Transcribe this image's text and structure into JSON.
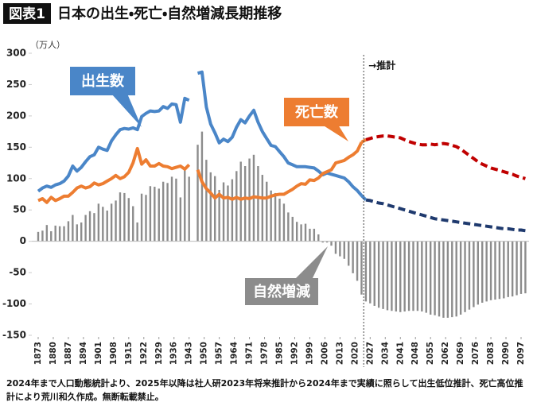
{
  "chart_data": {
    "type": "bar_line",
    "figure_label": "図表1",
    "title": "日本の出生・死亡・自然増減長期推移",
    "y_unit": "（万人）",
    "forecast_label": "→推計",
    "note": "2024年まで人口動態統計より、2025年以降は社人研2023年将来推計から2024年まで実績に照らして出生低位推計、死亡高位推計により荒川和久作成。無断転載禁止。",
    "forecast_from": 2025,
    "x": [
      1873,
      1875,
      1877,
      1879,
      1881,
      1883,
      1885,
      1887,
      1889,
      1891,
      1893,
      1895,
      1897,
      1899,
      1901,
      1903,
      1905,
      1907,
      1909,
      1911,
      1913,
      1915,
      1917,
      1919,
      1921,
      1923,
      1925,
      1927,
      1929,
      1931,
      1933,
      1935,
      1937,
      1939,
      1941,
      1943,
      1945,
      1947,
      1949,
      1951,
      1953,
      1955,
      1957,
      1959,
      1961,
      1963,
      1965,
      1967,
      1969,
      1971,
      1973,
      1975,
      1977,
      1979,
      1981,
      1983,
      1985,
      1987,
      1989,
      1991,
      1993,
      1995,
      1997,
      1999,
      2001,
      2003,
      2005,
      2007,
      2009,
      2011,
      2013,
      2015,
      2017,
      2019,
      2021,
      2023,
      2025,
      2027,
      2029,
      2031,
      2033,
      2035,
      2037,
      2039,
      2041,
      2043,
      2045,
      2047,
      2049,
      2051,
      2053,
      2055,
      2057,
      2059,
      2061,
      2063,
      2065,
      2067,
      2069,
      2071,
      2073,
      2075,
      2077,
      2079,
      2081,
      2083,
      2085,
      2087,
      2089,
      2091,
      2093,
      2095,
      2097,
      2099
    ],
    "series": [
      {
        "name": "自然増減",
        "type": "bar",
        "color": "#8c8c8c",
        "values": [
          15,
          17,
          26,
          16,
          25,
          24,
          24,
          32,
          42,
          27,
          30,
          42,
          48,
          45,
          60,
          55,
          49,
          60,
          65,
          78,
          77,
          69,
          56,
          30,
          76,
          74,
          88,
          87,
          84,
          95,
          93,
          103,
          100,
          70,
          113,
          103,
          null,
          154,
          175,
          130,
          110,
          104,
          82,
          94,
          89,
          99,
          112,
          127,
          120,
          132,
          138,
          120,
          106,
          95,
          81,
          77,
          68,
          60,
          46,
          39,
          31,
          27,
          28,
          20,
          20,
          11,
          -2,
          -2,
          -7,
          -20,
          -24,
          -28,
          -39,
          -51,
          -63,
          -85,
          -96,
          -99,
          -103,
          -106,
          -108,
          -110,
          -111,
          -112,
          -113,
          -112,
          -111,
          -111,
          -111,
          -112,
          -114,
          -117,
          -118,
          -120,
          -122,
          -122,
          -121,
          -120,
          -117,
          -113,
          -109,
          -105,
          -101,
          -98,
          -96,
          -94,
          -93,
          -92,
          -91,
          -89,
          -88,
          -86,
          -84,
          -83
        ]
      },
      {
        "name": "出生数",
        "type": "line",
        "color": "#4a86c8",
        "forecast_color": "#1f3a6e",
        "values": [
          80,
          85,
          88,
          86,
          90,
          92,
          96,
          104,
          120,
          112,
          118,
          127,
          135,
          138,
          150,
          147,
          145,
          160,
          170,
          178,
          180,
          179,
          181,
          178,
          199,
          204,
          208,
          207,
          208,
          215,
          212,
          219,
          218,
          190,
          228,
          225,
          null,
          268,
          270,
          214,
          187,
          173,
          157,
          163,
          159,
          166,
          182,
          194,
          189,
          200,
          209,
          190,
          175,
          164,
          153,
          151,
          143,
          135,
          125,
          122,
          119,
          119,
          119,
          118,
          117,
          112,
          106,
          109,
          107,
          105,
          103,
          101,
          95,
          87,
          81,
          73,
          66,
          65,
          63,
          61,
          60,
          58,
          56,
          54,
          52,
          50,
          48,
          46,
          44,
          42,
          40,
          38,
          36,
          35,
          34,
          33,
          32,
          31,
          30,
          29,
          28,
          27,
          26,
          25,
          24,
          23,
          22,
          21,
          20,
          20,
          19,
          18,
          18,
          17
        ]
      },
      {
        "name": "死亡数",
        "type": "line",
        "color": "#ed7d31",
        "forecast_color": "#c00000",
        "values": [
          65,
          68,
          62,
          70,
          65,
          68,
          72,
          72,
          78,
          85,
          88,
          85,
          87,
          93,
          90,
          92,
          96,
          100,
          105,
          100,
          103,
          110,
          125,
          148,
          123,
          130,
          120,
          120,
          124,
          120,
          119,
          116,
          118,
          120,
          115,
          122,
          null,
          114,
          95,
          84,
          77,
          69,
          75,
          69,
          70,
          67,
          70,
          67,
          69,
          68,
          71,
          70,
          69,
          69,
          72,
          74,
          75,
          75,
          79,
          83,
          88,
          92,
          91,
          98,
          97,
          101,
          108,
          111,
          114,
          125,
          127,
          129,
          134,
          138,
          144,
          158,
          162,
          164,
          166,
          167,
          168,
          168,
          167,
          166,
          165,
          162,
          159,
          157,
          155,
          154,
          154,
          155,
          154,
          155,
          156,
          155,
          153,
          151,
          147,
          142,
          137,
          132,
          127,
          123,
          120,
          117,
          115,
          113,
          111,
          109,
          107,
          104,
          102,
          100
        ]
      }
    ],
    "xlim": [
      1873,
      2097
    ],
    "xticks": [
      1873,
      1880,
      1887,
      1894,
      1901,
      1908,
      1915,
      1922,
      1929,
      1936,
      1943,
      1950,
      1957,
      1964,
      1971,
      1978,
      1985,
      1992,
      1999,
      2006,
      2013,
      2020,
      2027,
      2034,
      2041,
      2048,
      2055,
      2062,
      2069,
      2076,
      2083,
      2090,
      2097
    ],
    "ylim": [
      -150,
      300
    ],
    "yticks": [
      -150,
      -100,
      -50,
      0,
      50,
      100,
      150,
      200,
      250,
      300
    ],
    "negative_tick_color": "#c00000",
    "grid": false
  }
}
